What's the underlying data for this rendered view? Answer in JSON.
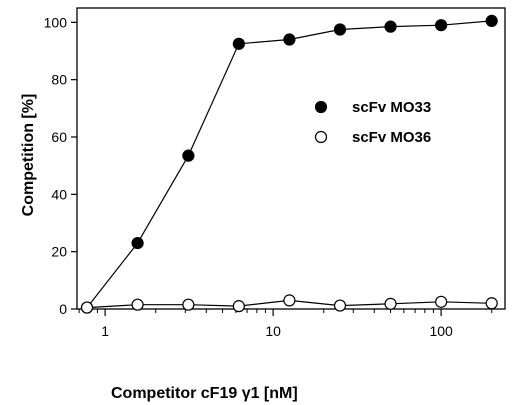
{
  "chart_data": {
    "type": "line",
    "xscale": "log",
    "xlabel": "Competitor cF19 γ1 [nM]",
    "ylabel": "Competition [%]",
    "xlim": [
      0.68,
      240
    ],
    "ylim": [
      0,
      105
    ],
    "xticks": [
      1,
      10,
      100
    ],
    "xtick_labels": [
      "1",
      "10",
      "100"
    ],
    "yticks": [
      0,
      20,
      40,
      60,
      80,
      100
    ],
    "ytick_labels": [
      "0",
      "20",
      "40",
      "60",
      "80",
      "100"
    ],
    "legend_position": "right-middle",
    "grid": false,
    "series": [
      {
        "name": "scFv MO33",
        "marker": "filled-circle",
        "color": "#000000",
        "x": [
          0.78,
          1.56,
          3.13,
          6.25,
          12.5,
          25,
          50,
          100,
          200
        ],
        "y": [
          0.5,
          23,
          53.5,
          92.5,
          94,
          97.5,
          98.5,
          99,
          100.5
        ]
      },
      {
        "name": "scFv MO36",
        "marker": "open-circle",
        "color": "#000000",
        "x": [
          0.78,
          1.56,
          3.13,
          6.25,
          12.5,
          25,
          50,
          100,
          200
        ],
        "y": [
          0.5,
          1.5,
          1.5,
          1.0,
          3.0,
          1.2,
          1.8,
          2.5,
          2.0
        ]
      }
    ]
  }
}
